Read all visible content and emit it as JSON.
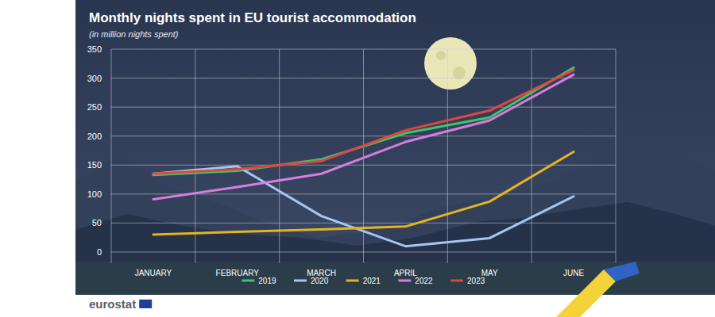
{
  "chart_data": {
    "type": "line",
    "title": "Monthly nights spent in EU tourist accommodation",
    "subtitle": "(in million nights spent)",
    "source": "eurostat",
    "categories": [
      "JANUARY",
      "FEBRUARY",
      "MARCH",
      "APRIL",
      "MAY",
      "JUNE"
    ],
    "series": [
      {
        "name": "2019",
        "color": "#3ec46d",
        "values": [
          133,
          140,
          160,
          205,
          232,
          318
        ]
      },
      {
        "name": "2020",
        "color": "#a8c6ee",
        "values": [
          135,
          148,
          62,
          10,
          24,
          96
        ]
      },
      {
        "name": "2021",
        "color": "#e5b423",
        "values": [
          30,
          35,
          39,
          44,
          87,
          173
        ]
      },
      {
        "name": "2022",
        "color": "#d67ee0",
        "values": [
          91,
          112,
          135,
          190,
          227,
          306
        ]
      },
      {
        "name": "2023",
        "color": "#e0463f",
        "values": [
          135,
          143,
          157,
          210,
          244,
          314
        ]
      }
    ],
    "ylim": [
      0,
      350
    ],
    "yticks": [
      0,
      50,
      100,
      150,
      200,
      250,
      300,
      350
    ],
    "grid": true,
    "legend": "bottom"
  }
}
